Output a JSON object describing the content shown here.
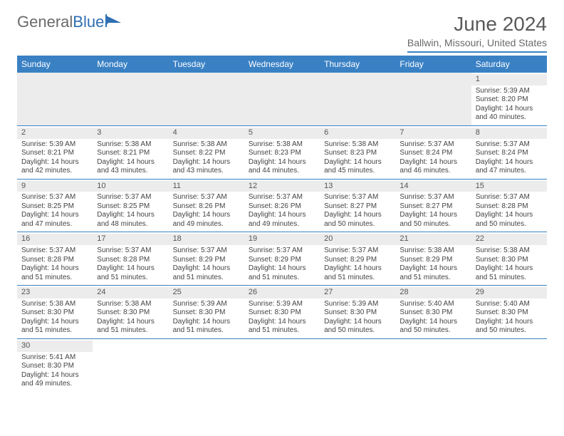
{
  "branding": {
    "logo_part1": "General",
    "logo_part2": "Blue"
  },
  "header": {
    "title": "June 2024",
    "location": "Ballwin, Missouri, United States"
  },
  "colors": {
    "accent": "#3a81c4",
    "header_text": "#ffffff",
    "body_text": "#444444",
    "muted_text": "#6a6a6a",
    "daybar_bg": "#ececec",
    "page_bg": "#ffffff"
  },
  "days_of_week": [
    "Sunday",
    "Monday",
    "Tuesday",
    "Wednesday",
    "Thursday",
    "Friday",
    "Saturday"
  ],
  "weeks": [
    [
      null,
      null,
      null,
      null,
      null,
      null,
      {
        "n": "1",
        "sunrise": "Sunrise: 5:39 AM",
        "sunset": "Sunset: 8:20 PM",
        "d1": "Daylight: 14 hours",
        "d2": "and 40 minutes."
      }
    ],
    [
      {
        "n": "2",
        "sunrise": "Sunrise: 5:39 AM",
        "sunset": "Sunset: 8:21 PM",
        "d1": "Daylight: 14 hours",
        "d2": "and 42 minutes."
      },
      {
        "n": "3",
        "sunrise": "Sunrise: 5:38 AM",
        "sunset": "Sunset: 8:21 PM",
        "d1": "Daylight: 14 hours",
        "d2": "and 43 minutes."
      },
      {
        "n": "4",
        "sunrise": "Sunrise: 5:38 AM",
        "sunset": "Sunset: 8:22 PM",
        "d1": "Daylight: 14 hours",
        "d2": "and 43 minutes."
      },
      {
        "n": "5",
        "sunrise": "Sunrise: 5:38 AM",
        "sunset": "Sunset: 8:23 PM",
        "d1": "Daylight: 14 hours",
        "d2": "and 44 minutes."
      },
      {
        "n": "6",
        "sunrise": "Sunrise: 5:38 AM",
        "sunset": "Sunset: 8:23 PM",
        "d1": "Daylight: 14 hours",
        "d2": "and 45 minutes."
      },
      {
        "n": "7",
        "sunrise": "Sunrise: 5:37 AM",
        "sunset": "Sunset: 8:24 PM",
        "d1": "Daylight: 14 hours",
        "d2": "and 46 minutes."
      },
      {
        "n": "8",
        "sunrise": "Sunrise: 5:37 AM",
        "sunset": "Sunset: 8:24 PM",
        "d1": "Daylight: 14 hours",
        "d2": "and 47 minutes."
      }
    ],
    [
      {
        "n": "9",
        "sunrise": "Sunrise: 5:37 AM",
        "sunset": "Sunset: 8:25 PM",
        "d1": "Daylight: 14 hours",
        "d2": "and 47 minutes."
      },
      {
        "n": "10",
        "sunrise": "Sunrise: 5:37 AM",
        "sunset": "Sunset: 8:25 PM",
        "d1": "Daylight: 14 hours",
        "d2": "and 48 minutes."
      },
      {
        "n": "11",
        "sunrise": "Sunrise: 5:37 AM",
        "sunset": "Sunset: 8:26 PM",
        "d1": "Daylight: 14 hours",
        "d2": "and 49 minutes."
      },
      {
        "n": "12",
        "sunrise": "Sunrise: 5:37 AM",
        "sunset": "Sunset: 8:26 PM",
        "d1": "Daylight: 14 hours",
        "d2": "and 49 minutes."
      },
      {
        "n": "13",
        "sunrise": "Sunrise: 5:37 AM",
        "sunset": "Sunset: 8:27 PM",
        "d1": "Daylight: 14 hours",
        "d2": "and 50 minutes."
      },
      {
        "n": "14",
        "sunrise": "Sunrise: 5:37 AM",
        "sunset": "Sunset: 8:27 PM",
        "d1": "Daylight: 14 hours",
        "d2": "and 50 minutes."
      },
      {
        "n": "15",
        "sunrise": "Sunrise: 5:37 AM",
        "sunset": "Sunset: 8:28 PM",
        "d1": "Daylight: 14 hours",
        "d2": "and 50 minutes."
      }
    ],
    [
      {
        "n": "16",
        "sunrise": "Sunrise: 5:37 AM",
        "sunset": "Sunset: 8:28 PM",
        "d1": "Daylight: 14 hours",
        "d2": "and 51 minutes."
      },
      {
        "n": "17",
        "sunrise": "Sunrise: 5:37 AM",
        "sunset": "Sunset: 8:28 PM",
        "d1": "Daylight: 14 hours",
        "d2": "and 51 minutes."
      },
      {
        "n": "18",
        "sunrise": "Sunrise: 5:37 AM",
        "sunset": "Sunset: 8:29 PM",
        "d1": "Daylight: 14 hours",
        "d2": "and 51 minutes."
      },
      {
        "n": "19",
        "sunrise": "Sunrise: 5:37 AM",
        "sunset": "Sunset: 8:29 PM",
        "d1": "Daylight: 14 hours",
        "d2": "and 51 minutes."
      },
      {
        "n": "20",
        "sunrise": "Sunrise: 5:37 AM",
        "sunset": "Sunset: 8:29 PM",
        "d1": "Daylight: 14 hours",
        "d2": "and 51 minutes."
      },
      {
        "n": "21",
        "sunrise": "Sunrise: 5:38 AM",
        "sunset": "Sunset: 8:29 PM",
        "d1": "Daylight: 14 hours",
        "d2": "and 51 minutes."
      },
      {
        "n": "22",
        "sunrise": "Sunrise: 5:38 AM",
        "sunset": "Sunset: 8:30 PM",
        "d1": "Daylight: 14 hours",
        "d2": "and 51 minutes."
      }
    ],
    [
      {
        "n": "23",
        "sunrise": "Sunrise: 5:38 AM",
        "sunset": "Sunset: 8:30 PM",
        "d1": "Daylight: 14 hours",
        "d2": "and 51 minutes."
      },
      {
        "n": "24",
        "sunrise": "Sunrise: 5:38 AM",
        "sunset": "Sunset: 8:30 PM",
        "d1": "Daylight: 14 hours",
        "d2": "and 51 minutes."
      },
      {
        "n": "25",
        "sunrise": "Sunrise: 5:39 AM",
        "sunset": "Sunset: 8:30 PM",
        "d1": "Daylight: 14 hours",
        "d2": "and 51 minutes."
      },
      {
        "n": "26",
        "sunrise": "Sunrise: 5:39 AM",
        "sunset": "Sunset: 8:30 PM",
        "d1": "Daylight: 14 hours",
        "d2": "and 51 minutes."
      },
      {
        "n": "27",
        "sunrise": "Sunrise: 5:39 AM",
        "sunset": "Sunset: 8:30 PM",
        "d1": "Daylight: 14 hours",
        "d2": "and 50 minutes."
      },
      {
        "n": "28",
        "sunrise": "Sunrise: 5:40 AM",
        "sunset": "Sunset: 8:30 PM",
        "d1": "Daylight: 14 hours",
        "d2": "and 50 minutes."
      },
      {
        "n": "29",
        "sunrise": "Sunrise: 5:40 AM",
        "sunset": "Sunset: 8:30 PM",
        "d1": "Daylight: 14 hours",
        "d2": "and 50 minutes."
      }
    ],
    [
      {
        "n": "30",
        "sunrise": "Sunrise: 5:41 AM",
        "sunset": "Sunset: 8:30 PM",
        "d1": "Daylight: 14 hours",
        "d2": "and 49 minutes."
      },
      null,
      null,
      null,
      null,
      null,
      null
    ]
  ]
}
